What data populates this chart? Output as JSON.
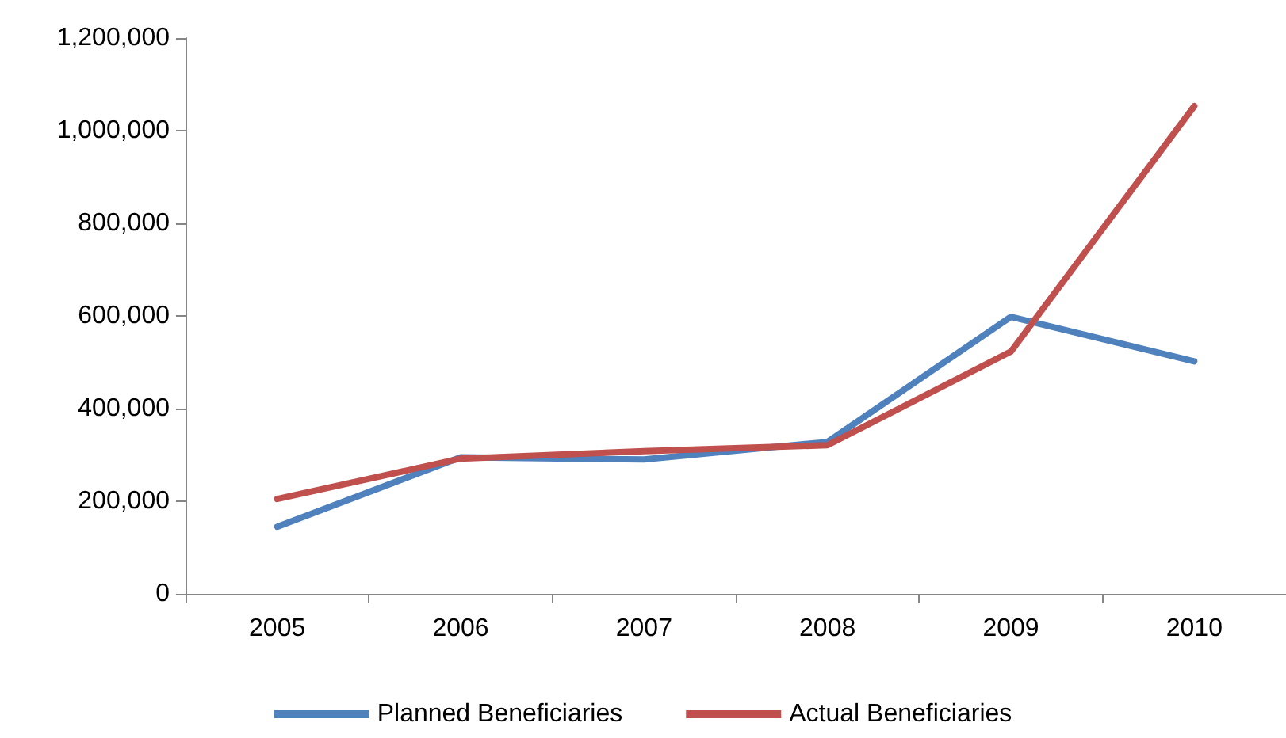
{
  "chart_data": {
    "type": "line",
    "categories": [
      "2005",
      "2006",
      "2007",
      "2008",
      "2009",
      "2010"
    ],
    "series": [
      {
        "name": "Planned Beneficiaries",
        "color": "#4f81bd",
        "values": [
          145000,
          295000,
          290000,
          328000,
          598000,
          502000
        ]
      },
      {
        "name": "Actual Beneficiaries",
        "color": "#c0504d",
        "values": [
          205000,
          292000,
          308000,
          321000,
          523000,
          1053000
        ]
      }
    ],
    "ylim": [
      0,
      1200000
    ],
    "yticks": [
      0,
      {
        "value": 200000,
        "label": "200,000"
      },
      {
        "value": 400000,
        "label": "400,000"
      },
      {
        "value": 600000,
        "label": "600,000"
      },
      {
        "value": 800000,
        "label": "800,000"
      },
      {
        "value": 1000000,
        "label": "1,000,000"
      },
      {
        "value": 1200000,
        "label": "1,200,000"
      }
    ],
    "grid": false,
    "legend": "bottom",
    "marker": "none",
    "line_style": "solid"
  }
}
